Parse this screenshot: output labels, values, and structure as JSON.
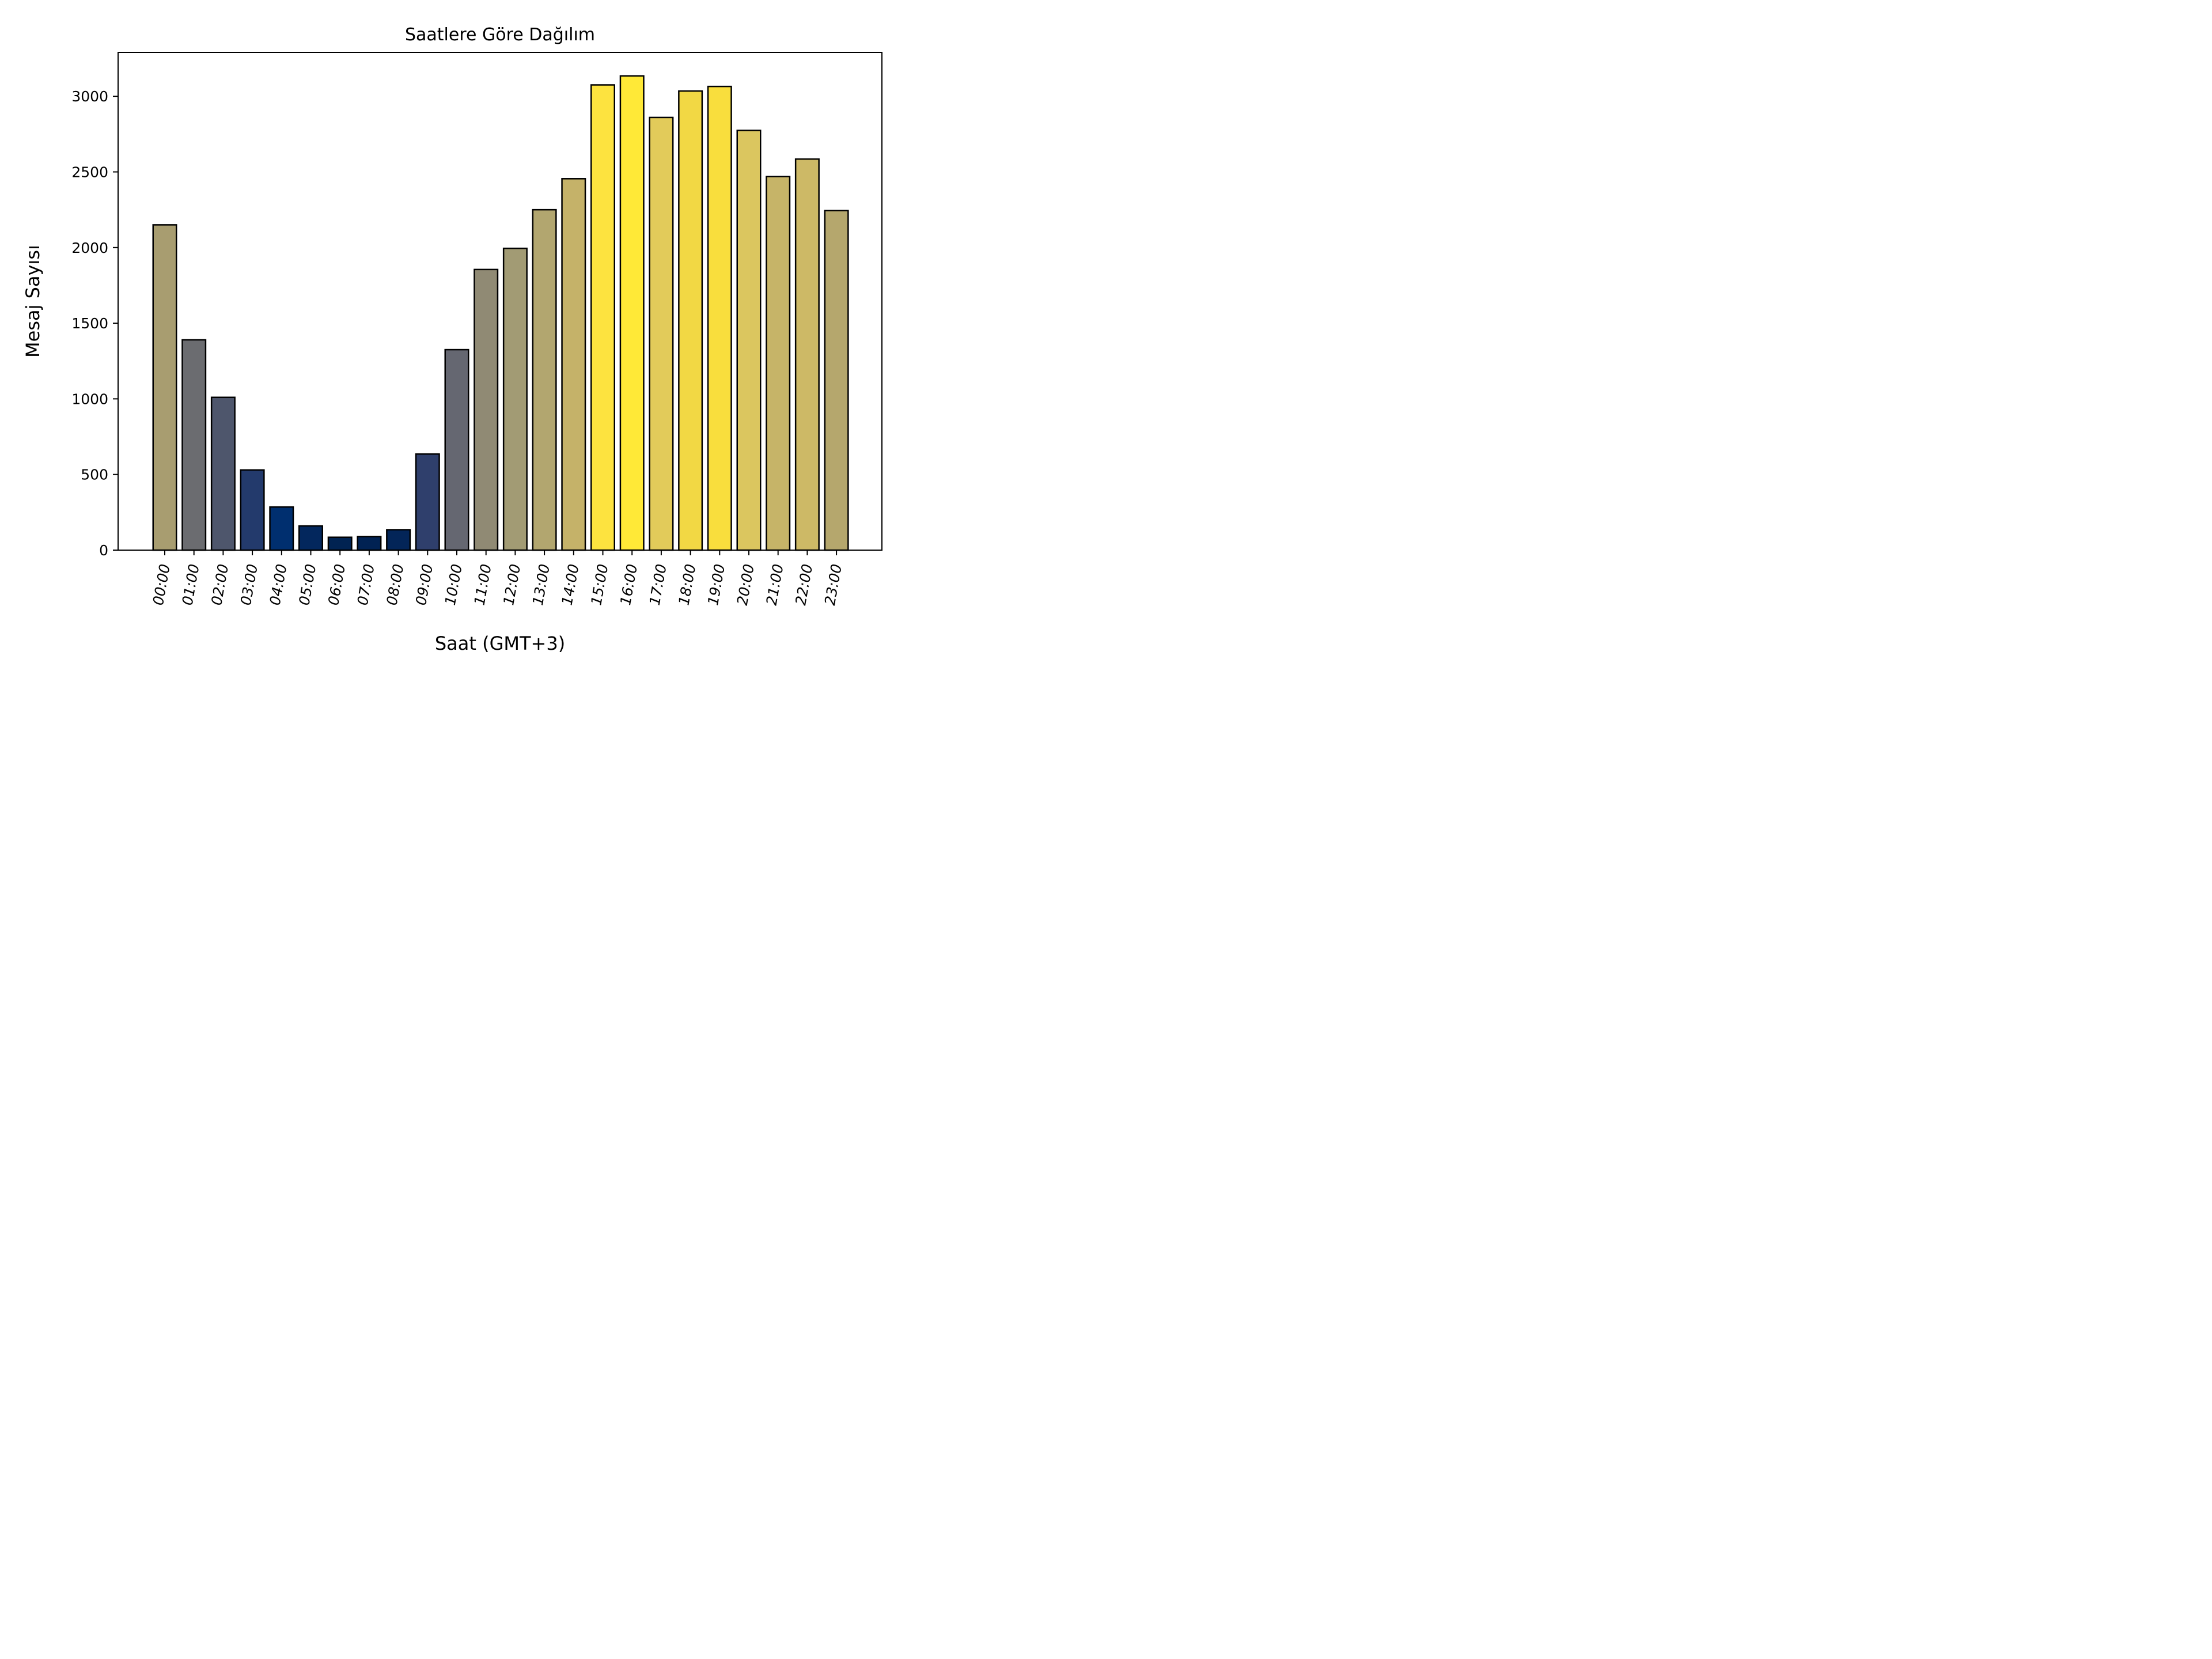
{
  "chart_data": {
    "type": "bar",
    "title": "Saatlere Göre Dağılım",
    "xlabel": "Saat (GMT+3)",
    "ylabel": "Mesaj Sayısı",
    "ylim": [
      0,
      3290
    ],
    "yticks": [
      0,
      500,
      1000,
      1500,
      2000,
      2500,
      3000
    ],
    "grid": false,
    "legend": "none",
    "colormap": "cividis",
    "categories": [
      "00:00",
      "01:00",
      "02:00",
      "03:00",
      "04:00",
      "05:00",
      "06:00",
      "07:00",
      "08:00",
      "09:00",
      "10:00",
      "11:00",
      "12:00",
      "13:00",
      "14:00",
      "15:00",
      "16:00",
      "17:00",
      "18:00",
      "19:00",
      "20:00",
      "21:00",
      "22:00",
      "23:00"
    ],
    "values": [
      2150,
      1390,
      1010,
      530,
      285,
      160,
      85,
      90,
      135,
      635,
      1325,
      1855,
      1995,
      2250,
      2455,
      3075,
      3135,
      2860,
      3035,
      3065,
      2775,
      2470,
      2585,
      2245
    ],
    "colors": [
      "#a89d70",
      "#6b6c70",
      "#4e566c",
      "#233a6c",
      "#002f6f",
      "#03275d",
      "#012352",
      "#012253",
      "#032558",
      "#2f3f6c",
      "#656771",
      "#908a74",
      "#a29b74",
      "#b2a66f",
      "#c5b269",
      "#fde33f",
      "#ffe937",
      "#e2cb5a",
      "#f2d844",
      "#f9de3d",
      "#dbc65f",
      "#c6b468",
      "#cdb966",
      "#b5a76d"
    ]
  }
}
